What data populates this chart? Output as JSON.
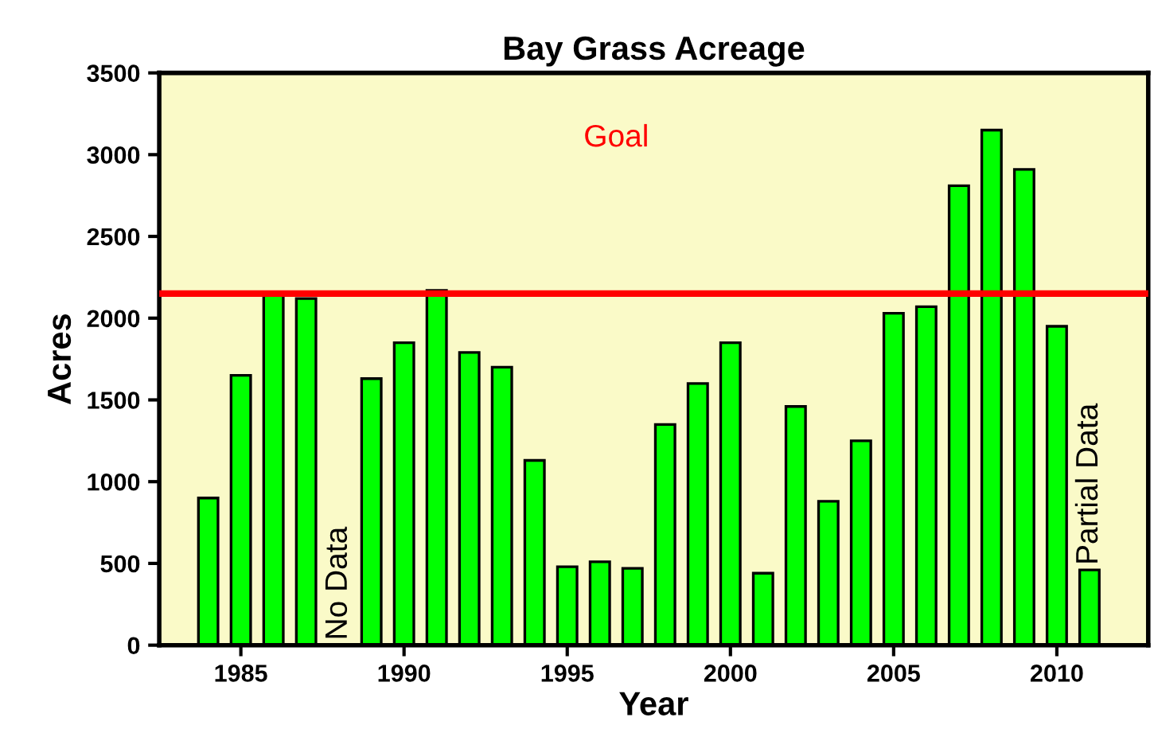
{
  "chart_data": {
    "type": "bar",
    "title": "Bay Grass Acreage",
    "xlabel": "Year",
    "ylabel": "Acres",
    "x": [
      1984,
      1985,
      1986,
      1987,
      1988,
      1989,
      1990,
      1991,
      1992,
      1993,
      1994,
      1995,
      1996,
      1997,
      1998,
      1999,
      2000,
      2001,
      2002,
      2003,
      2004,
      2005,
      2006,
      2007,
      2008,
      2009,
      2010,
      2011
    ],
    "values": [
      900,
      1650,
      2160,
      2120,
      null,
      1630,
      1850,
      2170,
      1790,
      1700,
      1130,
      480,
      510,
      470,
      1350,
      1600,
      1850,
      440,
      1460,
      880,
      1250,
      2030,
      2070,
      2810,
      3150,
      2910,
      1950,
      460
    ],
    "color": "#00ff00",
    "xlim": [
      1982.5,
      2012.8
    ],
    "xticks": [
      1985,
      1990,
      1995,
      2000,
      2005,
      2010
    ],
    "ylim": [
      0,
      3500
    ],
    "yticks": [
      0,
      500,
      1000,
      1500,
      2000,
      2500,
      3000,
      3500
    ],
    "ref_lines": [
      {
        "axis": "y",
        "value": 2150,
        "label": "Goal",
        "color": "#ff0000"
      }
    ],
    "annotations": [
      "No Data",
      {
        "text": "Partial Data",
        "x": 2011,
        "y": 460
      }
    ],
    "grid": false,
    "legend": false
  }
}
